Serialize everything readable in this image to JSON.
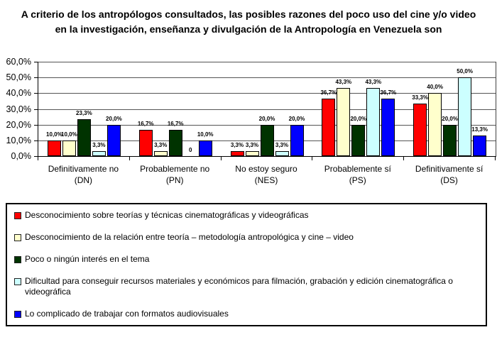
{
  "chart_data": {
    "type": "bar",
    "title": "A criterio de los antropólogos consultados, las posibles razones del poco uso del cine y/o video en la investigación, enseñanza y divulgación de la Antropología en Venezuela son",
    "categories": [
      "Definitivamente no",
      "Probablemente no",
      "No estoy seguro",
      "Probablemente sí",
      "Definitivamente sí"
    ],
    "category_abbrs": [
      "(DN)",
      "(PN)",
      "(NES)",
      "(PS)",
      "(DS)"
    ],
    "series": [
      {
        "name": "Desconocimiento sobre teorías y técnicas cinematográficas y videográficas",
        "color": "#ff0000",
        "values": [
          10.0,
          16.7,
          3.3,
          36.7,
          33.3
        ],
        "labels": [
          "10,0%",
          "16,7%",
          "3,3%",
          "36,7%",
          "33,3%"
        ]
      },
      {
        "name": "Desconocimiento de la relación entre teoría – metodología antropológica y cine – video",
        "color": "#ffffcc",
        "values": [
          10.0,
          3.3,
          3.3,
          43.3,
          40.0
        ],
        "labels": [
          "10,0%",
          "3,3%",
          "3,3%",
          "43,3%",
          "40,0%"
        ]
      },
      {
        "name": "Poco o ningún interés en el tema",
        "color": "#003300",
        "values": [
          23.3,
          16.7,
          20.0,
          20.0,
          20.0
        ],
        "labels": [
          "23,3%",
          "16,7%",
          "20,0%",
          "20,0%",
          "20,0%"
        ]
      },
      {
        "name": "Dificultad para conseguir recursos materiales y económicos para filmación, grabación y edición cinematográfica o videográfica",
        "color": "#ccffff",
        "values": [
          3.3,
          0,
          3.3,
          43.3,
          50.0
        ],
        "labels": [
          "3,3%",
          "0",
          "3,3%",
          "43,3%",
          "50,0%"
        ]
      },
      {
        "name": "Lo complicado de trabajar con formatos audiovisuales",
        "color": "#0000ff",
        "values": [
          20.0,
          10.0,
          20.0,
          36.7,
          13.3
        ],
        "labels": [
          "20,0%",
          "10,0%",
          "20,0%",
          "36,7%",
          "13,3%"
        ]
      }
    ],
    "ylim": [
      0,
      60
    ],
    "y_ticks": [
      0,
      10,
      20,
      30,
      40,
      50,
      60
    ],
    "y_tick_labels": [
      "0,0%",
      "10,0%",
      "20,0%",
      "30,0%",
      "40,0%",
      "50,0%",
      "60,0%"
    ],
    "grid": true,
    "legend_position": "bottom"
  }
}
